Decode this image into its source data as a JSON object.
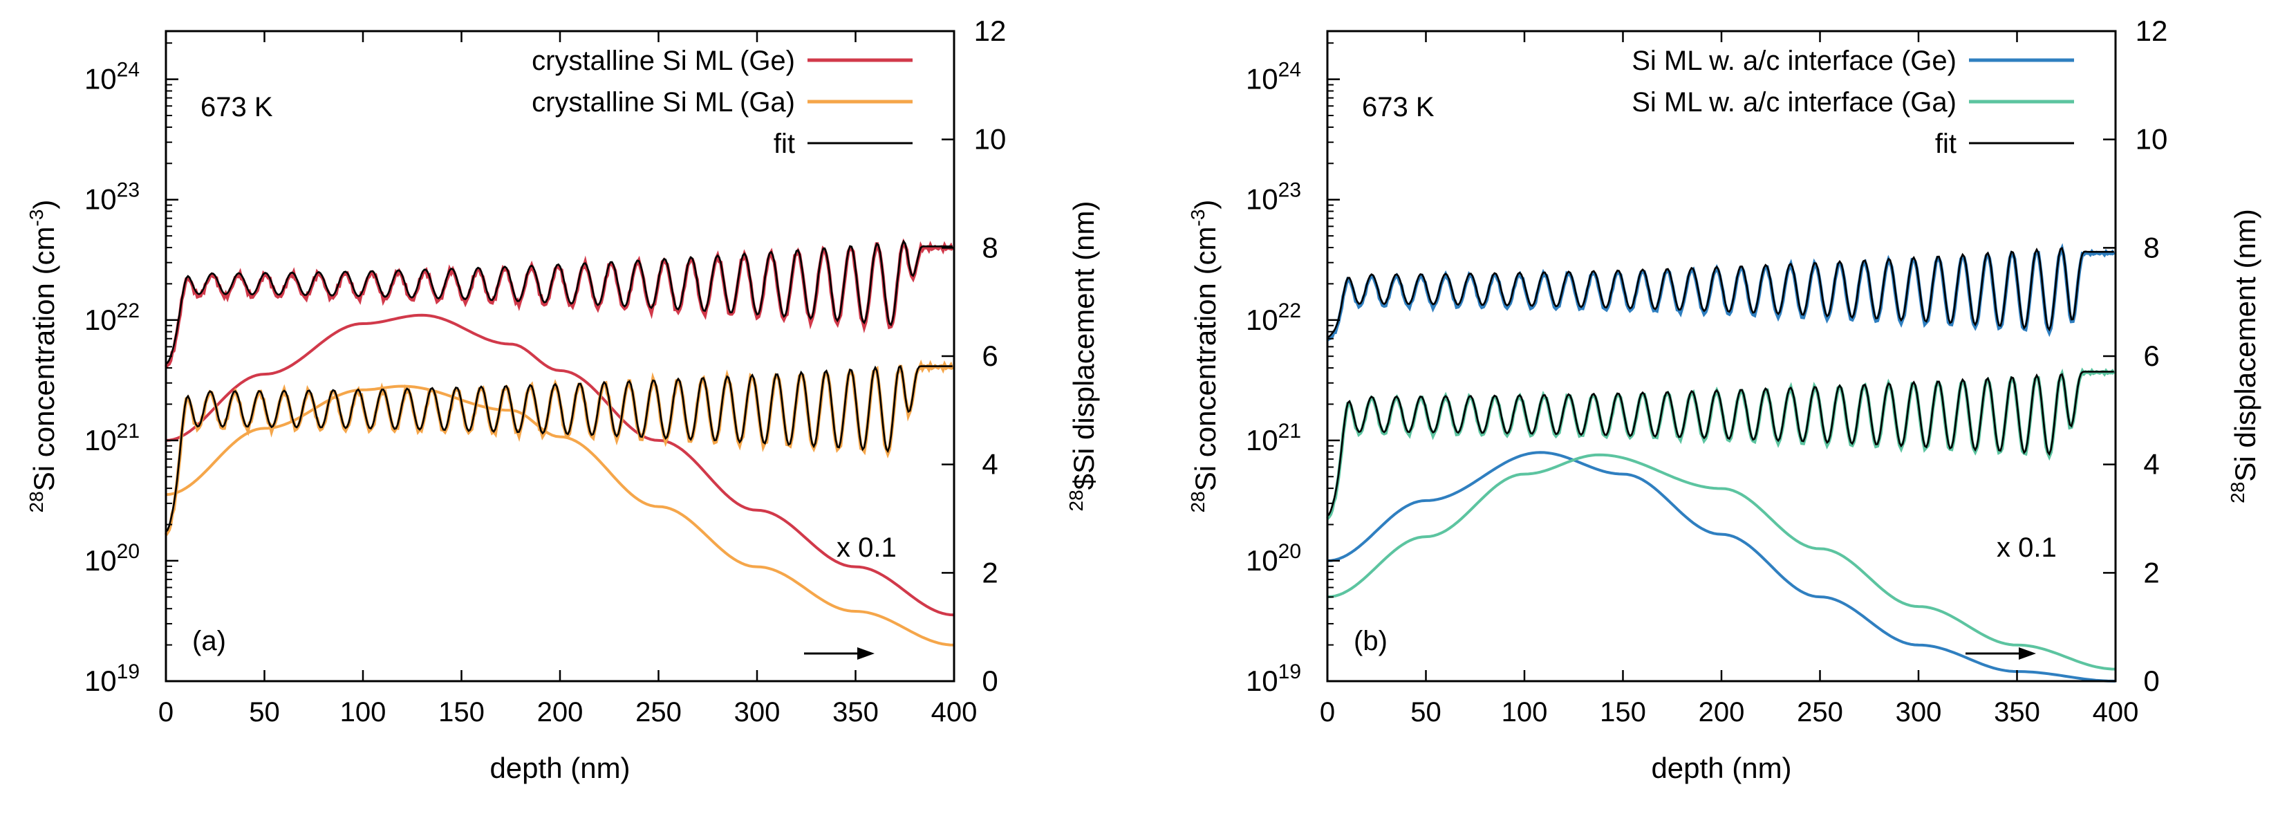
{
  "chart_data": [
    {
      "type": "line",
      "panel_label": "(a)",
      "annotation_temp": "673 K",
      "annotation_scale": "x 0.1",
      "xlabel": "depth (nm)",
      "ylabel_left": {
        "sup": "28",
        "text": "Si concentration (cm",
        "sup2": "-3",
        "tail": ")"
      },
      "ylabel_right": {
        "sup": "28",
        "text": "$Si displacement (nm)"
      },
      "xlim": [
        0,
        400
      ],
      "ylim_left_log10": [
        19,
        24.4
      ],
      "ylim_right": [
        0,
        12
      ],
      "x_ticks": [
        0,
        50,
        100,
        150,
        200,
        250,
        300,
        350,
        400
      ],
      "left_ticks": [
        {
          "exp": 19,
          "base": "10",
          "sup": "19"
        },
        {
          "exp": 20,
          "base": "10",
          "sup": "20"
        },
        {
          "exp": 21,
          "base": "10",
          "sup": "21"
        },
        {
          "exp": 22,
          "base": "10",
          "sup": "22"
        },
        {
          "exp": 23,
          "base": "10",
          "sup": "23"
        },
        {
          "exp": 24,
          "base": "10",
          "sup": "24"
        }
      ],
      "right_ticks": [
        0,
        2,
        4,
        6,
        8,
        10,
        12
      ],
      "legend": [
        {
          "label": "crystalline Si ML (Ge)",
          "color": "#d1394a"
        },
        {
          "label": "crystalline Si ML (Ga)",
          "color": "#f5a64a"
        },
        {
          "label": "fit",
          "color": "#000000"
        }
      ],
      "displacement_series": [
        {
          "name": "crystalline Si ML (Ge)",
          "color": "#d1394a",
          "base_nm": 7.3,
          "start_nm": 5.8,
          "plateau_nm": 8.0,
          "plateau_from": 378,
          "amp_start": 0.35,
          "amp_end": 1.6,
          "period": 13.5,
          "noise": 0.05
        },
        {
          "name": "crystalline Si ML (Ga)",
          "color": "#f5a64a",
          "base_nm": 5.0,
          "start_nm": 2.7,
          "plateau_nm": 5.8,
          "plateau_from": 377,
          "amp_start": 0.6,
          "amp_end": 1.6,
          "period": 12.5,
          "noise": 0.05
        }
      ],
      "concentration_series": [
        {
          "name": "crystalline Si ML (Ge)",
          "color": "#d1394a",
          "x": [
            0,
            50,
            100,
            130,
            175,
            200,
            250,
            300,
            350,
            400
          ],
          "log10_conc": [
            21.0,
            21.55,
            21.97,
            22.04,
            21.8,
            21.58,
            21.0,
            20.42,
            19.95,
            19.55
          ]
        },
        {
          "name": "crystalline Si ML (Ga)",
          "color": "#f5a64a",
          "x": [
            0,
            50,
            100,
            120,
            175,
            200,
            250,
            300,
            350,
            400
          ],
          "log10_conc": [
            20.55,
            21.1,
            21.42,
            21.45,
            21.25,
            21.03,
            20.45,
            19.95,
            19.58,
            19.3
          ]
        }
      ]
    },
    {
      "type": "line",
      "panel_label": "(b)",
      "annotation_temp": "673 K",
      "annotation_scale": "x 0.1",
      "xlabel": "depth (nm)",
      "ylabel_left": {
        "sup": "28",
        "text": "Si concentration (cm",
        "sup2": "-3",
        "tail": ")"
      },
      "ylabel_right": {
        "sup": "28",
        "text": "Si displacement (nm)"
      },
      "xlim": [
        0,
        400
      ],
      "ylim_left_log10": [
        19,
        24.4
      ],
      "ylim_right": [
        0,
        12
      ],
      "x_ticks": [
        0,
        50,
        100,
        150,
        200,
        250,
        300,
        350,
        400
      ],
      "left_ticks": [
        {
          "exp": 19,
          "base": "10",
          "sup": "19"
        },
        {
          "exp": 20,
          "base": "10",
          "sup": "20"
        },
        {
          "exp": 21,
          "base": "10",
          "sup": "21"
        },
        {
          "exp": 22,
          "base": "10",
          "sup": "22"
        },
        {
          "exp": 23,
          "base": "10",
          "sup": "23"
        },
        {
          "exp": 24,
          "base": "10",
          "sup": "24"
        }
      ],
      "right_ticks": [
        0,
        2,
        4,
        6,
        8,
        10,
        12
      ],
      "legend": [
        {
          "label": "Si ML w. a/c interface (Ge)",
          "color": "#2f7fc0"
        },
        {
          "label": "Si ML w. a/c interface (Ga)",
          "color": "#5cc4a0"
        },
        {
          "label": "fit",
          "color": "#000000"
        }
      ],
      "displacement_series": [
        {
          "name": "Si ML w. a/c interface (Ge)",
          "color": "#2f7fc0",
          "base_nm": 7.2,
          "start_nm": 6.3,
          "plateau_nm": 7.9,
          "plateau_from": 380,
          "amp_start": 0.5,
          "amp_end": 1.55,
          "period": 12.5,
          "noise": 0.03
        },
        {
          "name": "Si ML w. a/c interface (Ga)",
          "color": "#5cc4a0",
          "base_nm": 4.9,
          "start_nm": 3.0,
          "plateau_nm": 5.7,
          "plateau_from": 378,
          "amp_start": 0.6,
          "amp_end": 1.5,
          "period": 12.5,
          "noise": 0.03
        }
      ],
      "concentration_series": [
        {
          "name": "Si ML w. a/c interface (Ge)",
          "color": "#2f7fc0",
          "x": [
            0,
            50,
            108,
            150,
            200,
            250,
            300,
            350,
            400
          ],
          "log10_conc": [
            20.0,
            20.5,
            20.9,
            20.72,
            20.22,
            19.7,
            19.3,
            19.08,
            19.0
          ]
        },
        {
          "name": "Si ML w. a/c interface (Ga)",
          "color": "#5cc4a0",
          "x": [
            0,
            50,
            100,
            138,
            200,
            250,
            300,
            350,
            400
          ],
          "log10_conc": [
            19.7,
            20.2,
            20.72,
            20.88,
            20.6,
            20.1,
            19.62,
            19.3,
            19.1
          ]
        }
      ]
    }
  ]
}
